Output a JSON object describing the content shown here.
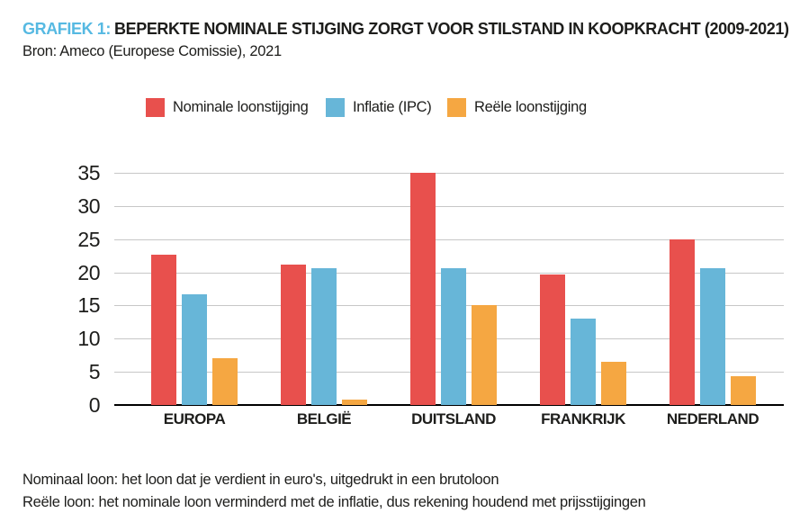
{
  "header": {
    "label": "GRAFIEK 1:",
    "label_color": "#56b9e2",
    "title": "BEPERKTE NOMINALE STIJGING ZORGT VOOR STILSTAND IN KOOPKRACHT (2009-2021)",
    "source": "Bron: Ameco (Europese Comissie), 2021"
  },
  "chart_data": {
    "type": "bar",
    "categories": [
      "EUROPA",
      "BELGIË",
      "DUITSLAND",
      "FRANKRIJK",
      "NEDERLAND"
    ],
    "series": [
      {
        "name": "Nominale loonstijging",
        "color": "#e8504d",
        "values": [
          22.7,
          21.2,
          35.0,
          19.7,
          25.0
        ]
      },
      {
        "name": "Inflatie (IPC)",
        "color": "#67b6d8",
        "values": [
          16.7,
          20.6,
          20.6,
          13.0,
          20.6
        ]
      },
      {
        "name": "Reële loonstijging",
        "color": "#f5a742",
        "values": [
          7.0,
          0.8,
          15.0,
          6.5,
          4.4
        ]
      }
    ],
    "title": "",
    "xlabel": "",
    "ylabel": "",
    "ylim": [
      0,
      35
    ],
    "yticks": [
      0,
      5,
      10,
      15,
      20,
      25,
      30,
      35
    ],
    "grid": "horizontal",
    "legend_position": "top",
    "axis_color": "#000000",
    "gridline_color": "#c7c7c7"
  },
  "footnotes": [
    "Nominaal loon: het loon dat je verdient in euro's, uitgedrukt in een brutoloon",
    "Reële loon: het nominale loon verminderd met de inflatie, dus rekening houdend met prijsstijgingen"
  ]
}
